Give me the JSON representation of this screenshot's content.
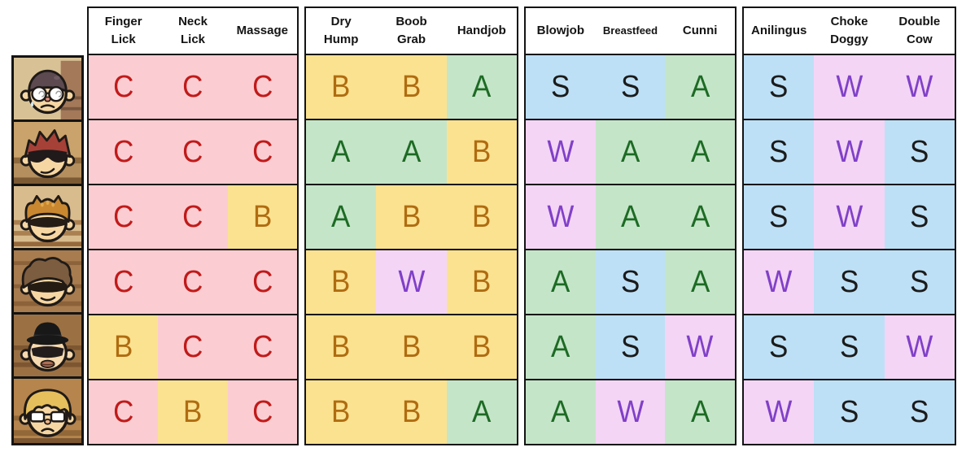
{
  "chart_title": "",
  "grade_styles": {
    "C": {
      "bg": "#FBCDD2",
      "fg": "#C11A1A"
    },
    "B": {
      "bg": "#FBE291",
      "fg": "#B06C10"
    },
    "A": {
      "bg": "#C5E5C9",
      "fg": "#1D6B24"
    },
    "S": {
      "bg": "#BDE0F6",
      "fg": "#1B1B1B"
    },
    "W": {
      "bg": "#F4D5F6",
      "fg": "#8040C8"
    }
  },
  "groups": [
    {
      "columns": [
        {
          "lines": [
            "Finger",
            "Lick"
          ]
        },
        {
          "lines": [
            "Neck",
            "Lick"
          ]
        },
        {
          "lines": [
            "Massage"
          ]
        }
      ]
    },
    {
      "columns": [
        {
          "lines": [
            "Dry",
            "Hump"
          ]
        },
        {
          "lines": [
            "Boob",
            "Grab"
          ]
        },
        {
          "lines": [
            "Handjob"
          ]
        }
      ]
    },
    {
      "columns": [
        {
          "lines": [
            "Blowjob"
          ]
        },
        {
          "lines": [
            "Breastfeed"
          ]
        },
        {
          "lines": [
            "Cunni"
          ]
        }
      ]
    },
    {
      "columns": [
        {
          "lines": [
            "Anilingus"
          ]
        },
        {
          "lines": [
            "Choke",
            "Doggy"
          ]
        },
        {
          "lines": [
            "Double",
            "Cow"
          ]
        }
      ]
    }
  ],
  "rows": [
    {
      "avatar": "boy-glasses-sweat",
      "grades": [
        [
          "C",
          "C",
          "C"
        ],
        [
          "B",
          "B",
          "A"
        ],
        [
          "S",
          "S",
          "A"
        ],
        [
          "S",
          "W",
          "W"
        ]
      ]
    },
    {
      "avatar": "boy-red-spiky-shades",
      "grades": [
        [
          "C",
          "C",
          "C"
        ],
        [
          "A",
          "A",
          "B"
        ],
        [
          "W",
          "A",
          "A"
        ],
        [
          "S",
          "W",
          "S"
        ]
      ]
    },
    {
      "avatar": "boy-orange-helmet-shades",
      "grades": [
        [
          "C",
          "C",
          "B"
        ],
        [
          "A",
          "B",
          "B"
        ],
        [
          "W",
          "A",
          "A"
        ],
        [
          "S",
          "W",
          "S"
        ]
      ]
    },
    {
      "avatar": "boy-brown-shaggy-hair",
      "grades": [
        [
          "C",
          "C",
          "C"
        ],
        [
          "B",
          "W",
          "B"
        ],
        [
          "A",
          "S",
          "A"
        ],
        [
          "W",
          "S",
          "S"
        ]
      ]
    },
    {
      "avatar": "boy-black-hat-shades",
      "grades": [
        [
          "B",
          "C",
          "C"
        ],
        [
          "B",
          "B",
          "B"
        ],
        [
          "A",
          "S",
          "W"
        ],
        [
          "S",
          "S",
          "W"
        ]
      ]
    },
    {
      "avatar": "boy-blonde-glasses",
      "grades": [
        [
          "C",
          "B",
          "C"
        ],
        [
          "B",
          "B",
          "A"
        ],
        [
          "A",
          "W",
          "A"
        ],
        [
          "W",
          "S",
          "S"
        ]
      ]
    }
  ],
  "chart_data": {
    "type": "table",
    "title": "",
    "column_headers": [
      "Finger Lick",
      "Neck Lick",
      "Massage",
      "Dry Hump",
      "Boob Grab",
      "Handjob",
      "Blowjob",
      "Breastfeed",
      "Cunni",
      "Anilingus",
      "Choke Doggy",
      "Double Cow"
    ],
    "row_labels": [
      "boy-glasses-sweat",
      "boy-red-spiky-shades",
      "boy-orange-helmet-shades",
      "boy-brown-shaggy-hair",
      "boy-black-hat-shades",
      "boy-blonde-glasses"
    ],
    "values": [
      [
        "C",
        "C",
        "C",
        "B",
        "B",
        "A",
        "S",
        "S",
        "A",
        "S",
        "W",
        "W"
      ],
      [
        "C",
        "C",
        "C",
        "A",
        "A",
        "B",
        "W",
        "A",
        "A",
        "S",
        "W",
        "S"
      ],
      [
        "C",
        "C",
        "B",
        "A",
        "B",
        "B",
        "W",
        "A",
        "A",
        "S",
        "W",
        "S"
      ],
      [
        "C",
        "C",
        "C",
        "B",
        "W",
        "B",
        "A",
        "S",
        "A",
        "W",
        "S",
        "S"
      ],
      [
        "B",
        "C",
        "C",
        "B",
        "B",
        "B",
        "A",
        "S",
        "W",
        "S",
        "S",
        "W"
      ],
      [
        "C",
        "B",
        "C",
        "B",
        "B",
        "A",
        "A",
        "W",
        "A",
        "W",
        "S",
        "S"
      ]
    ]
  }
}
